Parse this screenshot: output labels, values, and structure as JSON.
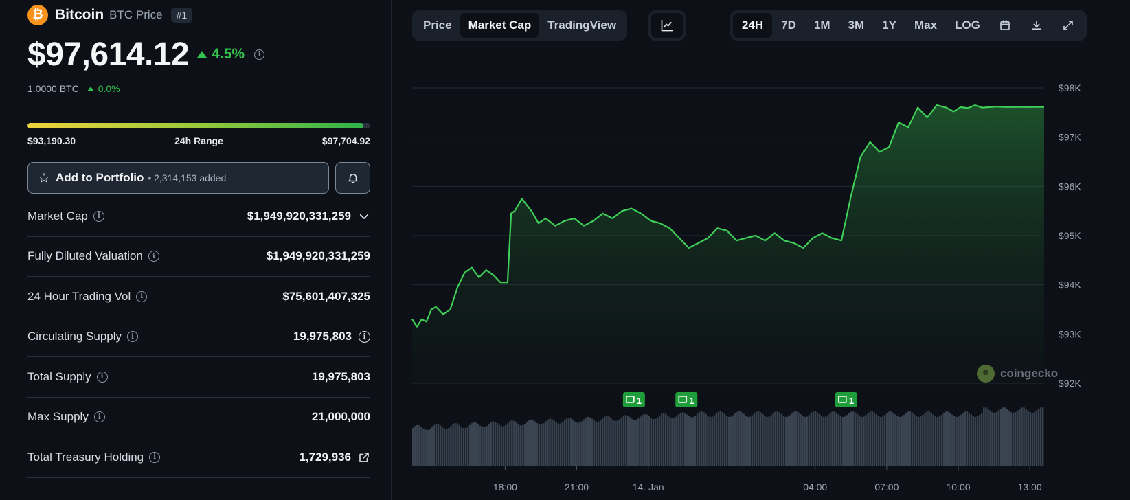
{
  "coin": {
    "logo_glyph": "₿",
    "name": "Bitcoin",
    "symbol_label": "BTC Price",
    "rank": "#1",
    "price": "$97,614.12",
    "change_pct": "4.5%",
    "btc_value": "1.0000 BTC",
    "btc_change": "0.0%"
  },
  "range": {
    "low": "$93,190.30",
    "label": "24h Range",
    "high": "$97,704.92",
    "fill_fraction": 0.98
  },
  "portfolio": {
    "label": "Add to Portfolio",
    "count": "• 2,314,153 added"
  },
  "stats": [
    {
      "label": "Market Cap",
      "value": "$1,949,920,331,259",
      "after_icon": "chevron-down-icon"
    },
    {
      "label": "Fully Diluted Valuation",
      "value": "$1,949,920,331,259",
      "after_icon": ""
    },
    {
      "label": "24 Hour Trading Vol",
      "value": "$75,601,407,325",
      "after_icon": ""
    },
    {
      "label": "Circulating Supply",
      "value": "19,975,803",
      "after_icon": "info-icon"
    },
    {
      "label": "Total Supply",
      "value": "19,975,803",
      "after_icon": ""
    },
    {
      "label": "Max Supply",
      "value": "21,000,000",
      "after_icon": ""
    },
    {
      "label": "Total Treasury Holding",
      "value": "1,729,936",
      "after_icon": "external-link-icon"
    }
  ],
  "toolbar": {
    "view_tabs": [
      "Price",
      "Market Cap",
      "TradingView"
    ],
    "active_view": "Market Cap",
    "ranges": [
      "24H",
      "7D",
      "1M",
      "3M",
      "1Y",
      "Max",
      "LOG"
    ],
    "active_range": "24H"
  },
  "colors": {
    "accent_green": "#33c24d",
    "line_green": "#3fcf58",
    "background": "#0d1117"
  },
  "chart_data": {
    "type": "area",
    "title": "",
    "xlabel": "",
    "ylabel": "",
    "ylim": [
      91900,
      98100
    ],
    "y_ticks": [
      "$98K",
      "$97K",
      "$96K",
      "$95K",
      "$94K",
      "$93K",
      "$92K"
    ],
    "y_tick_values": [
      98000,
      97000,
      96000,
      95000,
      94000,
      93000,
      92000
    ],
    "x_tick_labels": [
      "18:00",
      "21:00",
      "14. Jan",
      "04:00",
      "07:00",
      "10:00",
      "13:00"
    ],
    "x_tick_hours": [
      3.9,
      6.9,
      9.9,
      16.9,
      19.9,
      22.9,
      25.9
    ],
    "x_range_hours": [
      0,
      26.5
    ],
    "grid": "horizontal",
    "series": [
      {
        "x": [
          0.0,
          0.2,
          0.4,
          0.6,
          0.8,
          1.0,
          1.3,
          1.6,
          1.9,
          2.2,
          2.5,
          2.8,
          3.1,
          3.4,
          3.7,
          4.0,
          4.15,
          4.3,
          4.6,
          5.0,
          5.3,
          5.6,
          6.0,
          6.4,
          6.8,
          7.2,
          7.6,
          8.0,
          8.4,
          8.8,
          9.2,
          9.6,
          10.0,
          10.4,
          10.8,
          11.2,
          11.6,
          12.0,
          12.4,
          12.8,
          13.2,
          13.6,
          14.0,
          14.4,
          14.8,
          15.2,
          15.6,
          16.0,
          16.4,
          16.8,
          17.2,
          17.6,
          18.0,
          18.4,
          18.8,
          19.2,
          19.6,
          20.0,
          20.4,
          20.8,
          21.2,
          21.6,
          22.0,
          22.4,
          22.7,
          23.0,
          23.3,
          23.6,
          23.9,
          24.2,
          24.5,
          24.8,
          25.1,
          25.4,
          25.7,
          26.0,
          26.3,
          26.5
        ],
        "y": [
          93300,
          93150,
          93300,
          93250,
          93500,
          93550,
          93400,
          93500,
          93950,
          94250,
          94350,
          94150,
          94300,
          94200,
          94050,
          94050,
          95450,
          95500,
          95750,
          95500,
          95250,
          95350,
          95200,
          95300,
          95350,
          95200,
          95300,
          95450,
          95350,
          95500,
          95550,
          95450,
          95300,
          95250,
          95150,
          94950,
          94750,
          94850,
          94950,
          95150,
          95100,
          94900,
          94950,
          95000,
          94900,
          95050,
          94900,
          94850,
          94750,
          94950,
          95050,
          94950,
          94900,
          95800,
          96600,
          96900,
          96700,
          96800,
          97300,
          97200,
          97600,
          97400,
          97650,
          97600,
          97520,
          97610,
          97590,
          97650,
          97600,
          97610,
          97620,
          97614,
          97612,
          97616,
          97612,
          97614,
          97613,
          97614
        ]
      }
    ],
    "volume_bars_visible": true,
    "news_markers": [
      {
        "x_hour": 9.3,
        "count": "1"
      },
      {
        "x_hour": 11.5,
        "count": "1"
      },
      {
        "x_hour": 18.2,
        "count": "1"
      }
    ],
    "watermark": "coingecko"
  }
}
